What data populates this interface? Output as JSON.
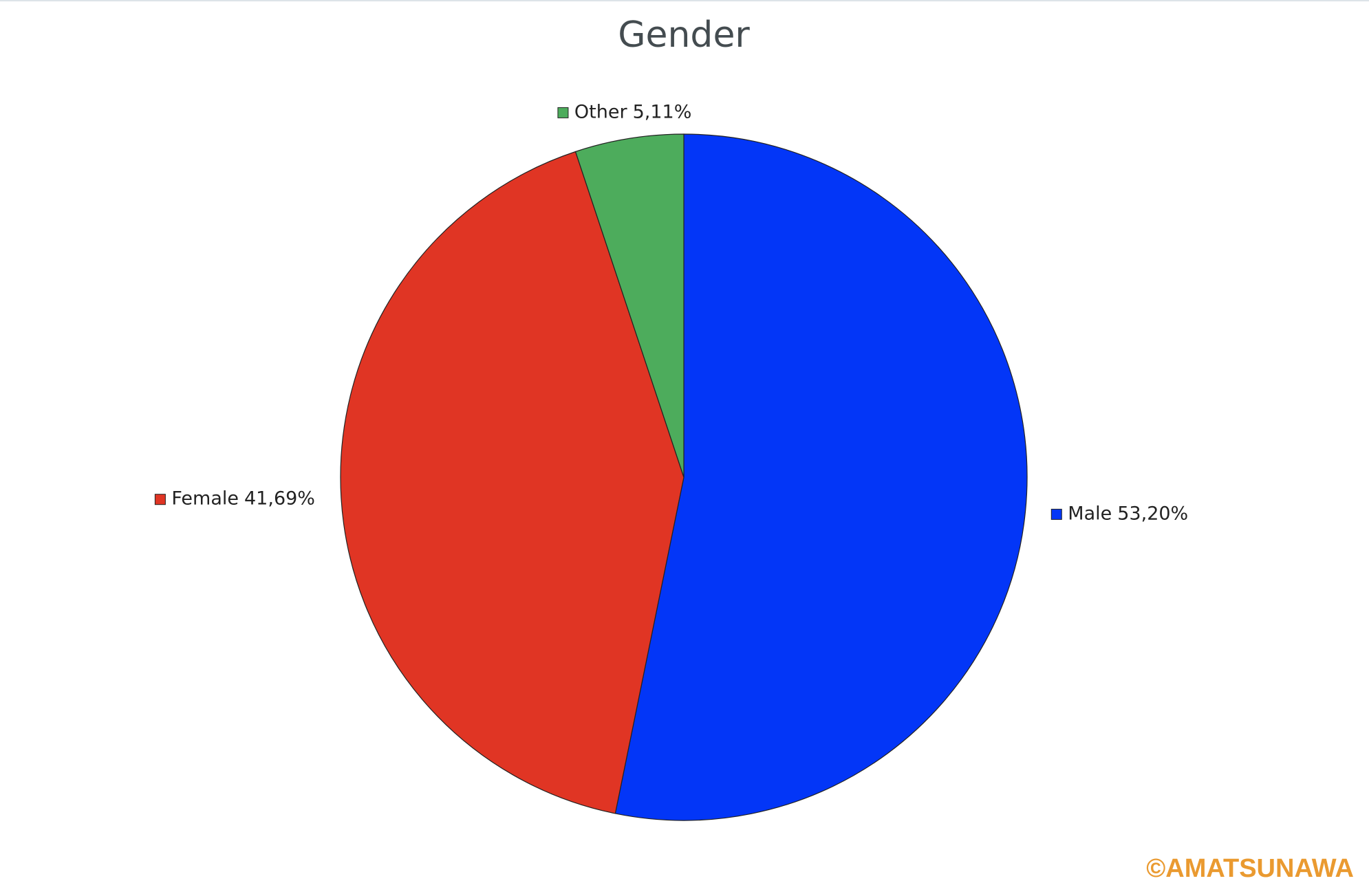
{
  "chart_data": {
    "type": "pie",
    "title": "Gender",
    "categories": [
      "Male",
      "Female",
      "Other"
    ],
    "values": [
      53.2,
      41.69,
      5.11
    ],
    "value_labels": [
      "53,20%",
      "41,69%",
      "5,11%"
    ],
    "colors": [
      "#0336f7",
      "#e03524",
      "#4dac5c"
    ]
  },
  "watermark": "©AMATSUNAWA"
}
